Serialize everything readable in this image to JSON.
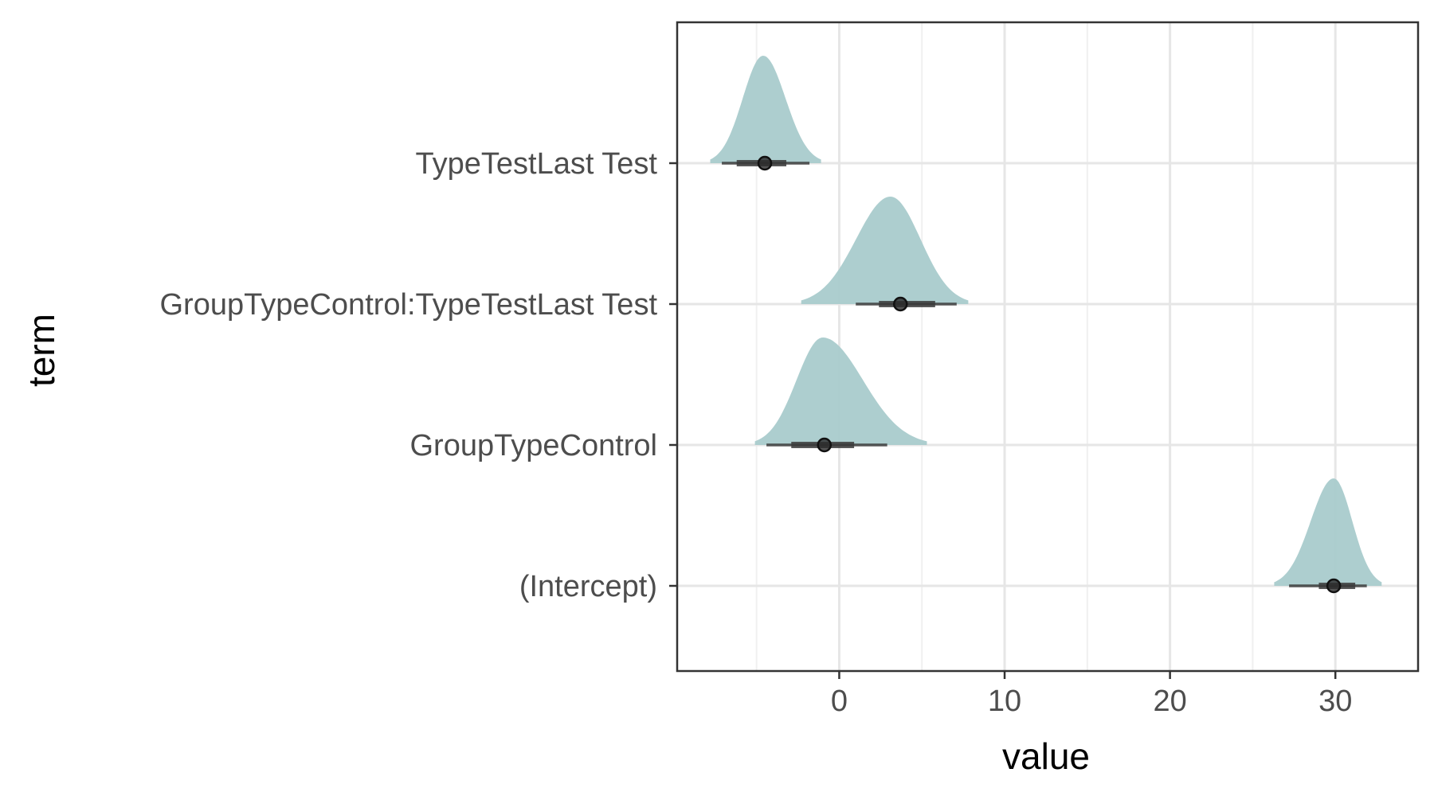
{
  "chart_data": {
    "type": "halfeye",
    "title": "",
    "xlabel": "value",
    "ylabel": "term",
    "xlim": [
      -9.8,
      35
    ],
    "xticks": [
      0,
      10,
      20,
      30
    ],
    "grid": true,
    "terms": [
      {
        "label": "TypeTestLast Test",
        "median": -4.5,
        "ci66": [
          -6.2,
          -3.2
        ],
        "ci95": [
          -7.1,
          -1.8
        ],
        "range": [
          -7.8,
          -1.1
        ],
        "mode": -4.6,
        "color": "#a9cbcc"
      },
      {
        "label": "GroupTypeControl:TypeTestLast Test",
        "median": 3.7,
        "ci66": [
          2.4,
          5.8
        ],
        "ci95": [
          1.0,
          7.1
        ],
        "range": [
          -2.3,
          7.8
        ],
        "mode": 3.1,
        "color": "#a9cbcc"
      },
      {
        "label": "GroupTypeControl",
        "median": -0.9,
        "ci66": [
          -2.9,
          0.9
        ],
        "ci95": [
          -4.4,
          2.9
        ],
        "range": [
          -5.1,
          5.3
        ],
        "mode": -1.0,
        "color": "#a9cbcc"
      },
      {
        "label": "(Intercept)",
        "median": 29.9,
        "ci66": [
          29.0,
          31.2
        ],
        "ci95": [
          27.2,
          31.9
        ],
        "range": [
          26.3,
          32.8
        ],
        "mode": 29.9,
        "color": "#a9cbcc"
      }
    ]
  }
}
